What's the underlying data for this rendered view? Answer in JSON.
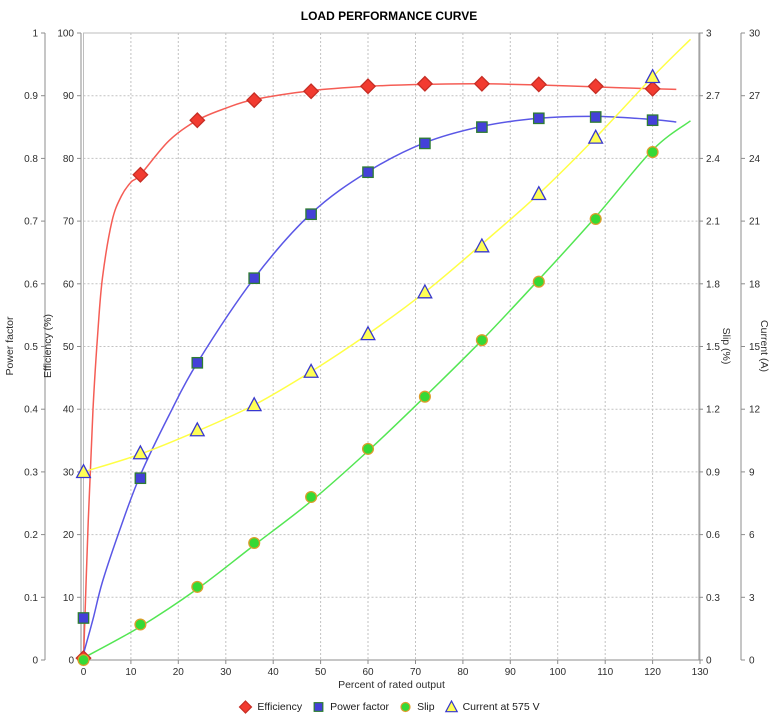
{
  "chart_data": {
    "type": "line",
    "title": "LOAD PERFORMANCE CURVE",
    "xlabel": "Percent of rated output",
    "legend_position": "bottom",
    "grid": true,
    "x_axis": {
      "min": 0,
      "max": 130,
      "ticks": [
        0,
        10,
        20,
        30,
        40,
        50,
        60,
        70,
        80,
        90,
        100,
        110,
        120,
        130
      ]
    },
    "axes": [
      {
        "id": "power_factor",
        "label": "Power factor",
        "side": "left-outer",
        "min": 0,
        "max": 1,
        "ticks": [
          0,
          0.1,
          0.2,
          0.3,
          0.4,
          0.5,
          0.6,
          0.7,
          0.8,
          0.9,
          1
        ]
      },
      {
        "id": "efficiency",
        "label": "Efficiency (%)",
        "side": "left-inner",
        "min": 0,
        "max": 100,
        "ticks": [
          0,
          10,
          20,
          30,
          40,
          50,
          60,
          70,
          80,
          90,
          100
        ]
      },
      {
        "id": "slip",
        "label": "Slip (%)",
        "side": "right-inner",
        "min": 0,
        "max": 3,
        "ticks": [
          0,
          0.3,
          0.6,
          0.9,
          1.2,
          1.5,
          1.8,
          2.1,
          2.4,
          2.7,
          3
        ]
      },
      {
        "id": "current",
        "label": "Current (A)",
        "side": "right-outer",
        "min": 0,
        "max": 30,
        "ticks": [
          0,
          3,
          6,
          9,
          12,
          15,
          18,
          21,
          24,
          27,
          30
        ]
      }
    ],
    "x": [
      0,
      12,
      24,
      36,
      48,
      60,
      72,
      84,
      96,
      108,
      120
    ],
    "series": [
      {
        "name": "Efficiency",
        "axis": "efficiency",
        "marker": "diamond",
        "color": "#f23b30",
        "outline": "#c62d24",
        "line_color": "#f55d55",
        "values": [
          0.3,
          77.4,
          86.1,
          89.3,
          90.7,
          91.5,
          91.9,
          91.9,
          91.8,
          91.5,
          91.1
        ],
        "trend": [
          [
            0,
            0
          ],
          [
            1,
            22
          ],
          [
            2,
            40
          ],
          [
            3,
            52
          ],
          [
            4,
            61
          ],
          [
            6,
            70
          ],
          [
            8,
            74
          ],
          [
            10,
            76.2
          ],
          [
            12,
            77.4
          ],
          [
            18,
            82.8
          ],
          [
            24,
            86.1
          ],
          [
            30,
            88
          ],
          [
            36,
            89.4
          ],
          [
            48,
            90.8
          ],
          [
            60,
            91.5
          ],
          [
            72,
            91.8
          ],
          [
            84,
            91.9
          ],
          [
            96,
            91.7
          ],
          [
            108,
            91.4
          ],
          [
            120,
            91.1
          ],
          [
            125,
            91
          ]
        ]
      },
      {
        "name": "Power factor",
        "axis": "power_factor",
        "marker": "square",
        "color": "#4440d8",
        "outline": "#2e7d32",
        "line_color": "#5a57e6",
        "values": [
          0.067,
          0.29,
          0.474,
          0.609,
          0.711,
          0.778,
          0.824,
          0.85,
          0.864,
          0.866,
          0.861
        ],
        "trend": [
          [
            0,
            0.01
          ],
          [
            2,
            0.065
          ],
          [
            4,
            0.125
          ],
          [
            8,
            0.215
          ],
          [
            12,
            0.295
          ],
          [
            18,
            0.39
          ],
          [
            24,
            0.474
          ],
          [
            36,
            0.609
          ],
          [
            48,
            0.712
          ],
          [
            60,
            0.779
          ],
          [
            72,
            0.825
          ],
          [
            84,
            0.851
          ],
          [
            96,
            0.864
          ],
          [
            108,
            0.867
          ],
          [
            120,
            0.862
          ],
          [
            125,
            0.858
          ]
        ]
      },
      {
        "name": "Slip",
        "axis": "slip",
        "marker": "circle",
        "color": "#35d935",
        "outline": "#dd9d2a",
        "line_color": "#53e653",
        "values": [
          0,
          0.17,
          0.35,
          0.56,
          0.78,
          1.01,
          1.26,
          1.53,
          1.81,
          2.11,
          2.43
        ],
        "trend": [
          [
            0,
            0.01
          ],
          [
            12,
            0.16
          ],
          [
            24,
            0.34
          ],
          [
            36,
            0.55
          ],
          [
            48,
            0.76
          ],
          [
            60,
            1.0
          ],
          [
            72,
            1.26
          ],
          [
            84,
            1.53
          ],
          [
            96,
            1.82
          ],
          [
            108,
            2.12
          ],
          [
            120,
            2.44
          ],
          [
            128,
            2.58
          ]
        ]
      },
      {
        "name": "Current at 575 V",
        "axis": "current",
        "marker": "triangle",
        "color": "#ffff55",
        "outline": "#3737cf",
        "line_color": "#ffff45",
        "values": [
          9.0,
          9.9,
          11.0,
          12.2,
          13.8,
          15.6,
          17.6,
          19.8,
          22.3,
          25.0,
          27.9
        ],
        "trend": [
          [
            0,
            9.0
          ],
          [
            12,
            9.85
          ],
          [
            24,
            10.95
          ],
          [
            36,
            12.2
          ],
          [
            48,
            13.8
          ],
          [
            60,
            15.6
          ],
          [
            72,
            17.6
          ],
          [
            84,
            19.9
          ],
          [
            96,
            22.3
          ],
          [
            108,
            25.0
          ],
          [
            120,
            27.9
          ],
          [
            128,
            29.7
          ]
        ]
      }
    ],
    "colors": {
      "grid": "#c2c2c2",
      "axis": "#8c8c8c",
      "border": "#bdbdbd",
      "text": "#2e2e2e"
    }
  }
}
